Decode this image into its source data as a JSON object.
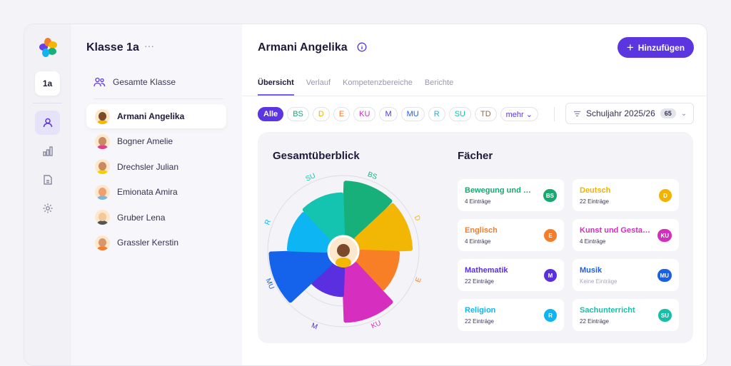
{
  "rail": {
    "class_label": "1a",
    "icons": [
      "students-icon",
      "chart-icon",
      "document-icon",
      "gear-icon"
    ]
  },
  "list": {
    "title": "Klasse 1a",
    "more": "···",
    "whole_class": "Gesamte Klasse",
    "students": [
      {
        "name": "Armani Angelika",
        "skin": "#7a4a2a",
        "shirt": "#f5b800",
        "active": true
      },
      {
        "name": "Bogner Amelie",
        "skin": "#c98a60",
        "shirt": "#e0408a"
      },
      {
        "name": "Drechsler Julian",
        "skin": "#c98a60",
        "shirt": "#f5d000"
      },
      {
        "name": "Emionata Amira",
        "skin": "#f0a070",
        "shirt": "#7ab8e0"
      },
      {
        "name": "Gruber Lena",
        "skin": "#f3c89a",
        "shirt": "#555"
      },
      {
        "name": "Grassler Kerstin",
        "skin": "#d99570",
        "shirt": "#f08030"
      }
    ]
  },
  "header": {
    "title": "Armani Angelika",
    "add_label": "Hinzufügen"
  },
  "tabs": [
    "Übersicht",
    "Verlauf",
    "Kompetenzbereiche",
    "Berichte"
  ],
  "filters": [
    {
      "label": "Alle",
      "color": "#5b35e0"
    },
    {
      "label": "BS",
      "color": "#17a86f"
    },
    {
      "label": "D",
      "color": "#f0b400"
    },
    {
      "label": "E",
      "color": "#f47c2a"
    },
    {
      "label": "KU",
      "color": "#d32fbe"
    },
    {
      "label": "M",
      "color": "#5a2fe0"
    },
    {
      "label": "MU",
      "color": "#1a5fe8"
    },
    {
      "label": "R",
      "color": "#10b4f0"
    },
    {
      "label": "SU",
      "color": "#18bfa8"
    },
    {
      "label": "TD",
      "color": "#8a6a50"
    },
    {
      "label": "mehr ⌄",
      "color": "#5b35e0"
    }
  ],
  "year": {
    "label": "Schuljahr 2025/26",
    "count": "65"
  },
  "overview": {
    "title": "Gesamtüberblick"
  },
  "subjects_title": "Fächer",
  "subjects": [
    {
      "name": "Bewegung und Sport",
      "code": "BS",
      "count": "4 Einträge",
      "color": "#17a86f"
    },
    {
      "name": "Deutsch",
      "code": "D",
      "count": "22 Einträge",
      "color": "#f0b400"
    },
    {
      "name": "Englisch",
      "code": "E",
      "count": "4 Einträge",
      "color": "#f47c2a"
    },
    {
      "name": "Kunst und Gestaltung",
      "code": "KU",
      "count": "4 Einträge",
      "color": "#d32fbe"
    },
    {
      "name": "Mathematik",
      "code": "M",
      "count": "22 Einträge",
      "color": "#5a2fe0"
    },
    {
      "name": "Musik",
      "code": "MU",
      "count": "Keine Einträge",
      "color": "#1a5fe8"
    },
    {
      "name": "Religion",
      "code": "R",
      "count": "22 Einträge",
      "color": "#10b4f0"
    },
    {
      "name": "Sachunterricht",
      "code": "SU",
      "count": "22 Einträge",
      "color": "#18bfa8"
    }
  ],
  "chart_data": {
    "type": "polar-area",
    "categories": [
      "BS",
      "D",
      "E",
      "KU",
      "M",
      "MU",
      "R",
      "SU"
    ],
    "values": [
      0.9,
      0.88,
      0.66,
      0.92,
      0.48,
      0.97,
      0.66,
      0.7
    ],
    "colors": [
      "#17b07a",
      "#f2b705",
      "#f97f27",
      "#d62fc0",
      "#5a2fe0",
      "#1563ea",
      "#0db6f2",
      "#15c4b0"
    ],
    "ylim": [
      0,
      1
    ],
    "grid": true
  }
}
